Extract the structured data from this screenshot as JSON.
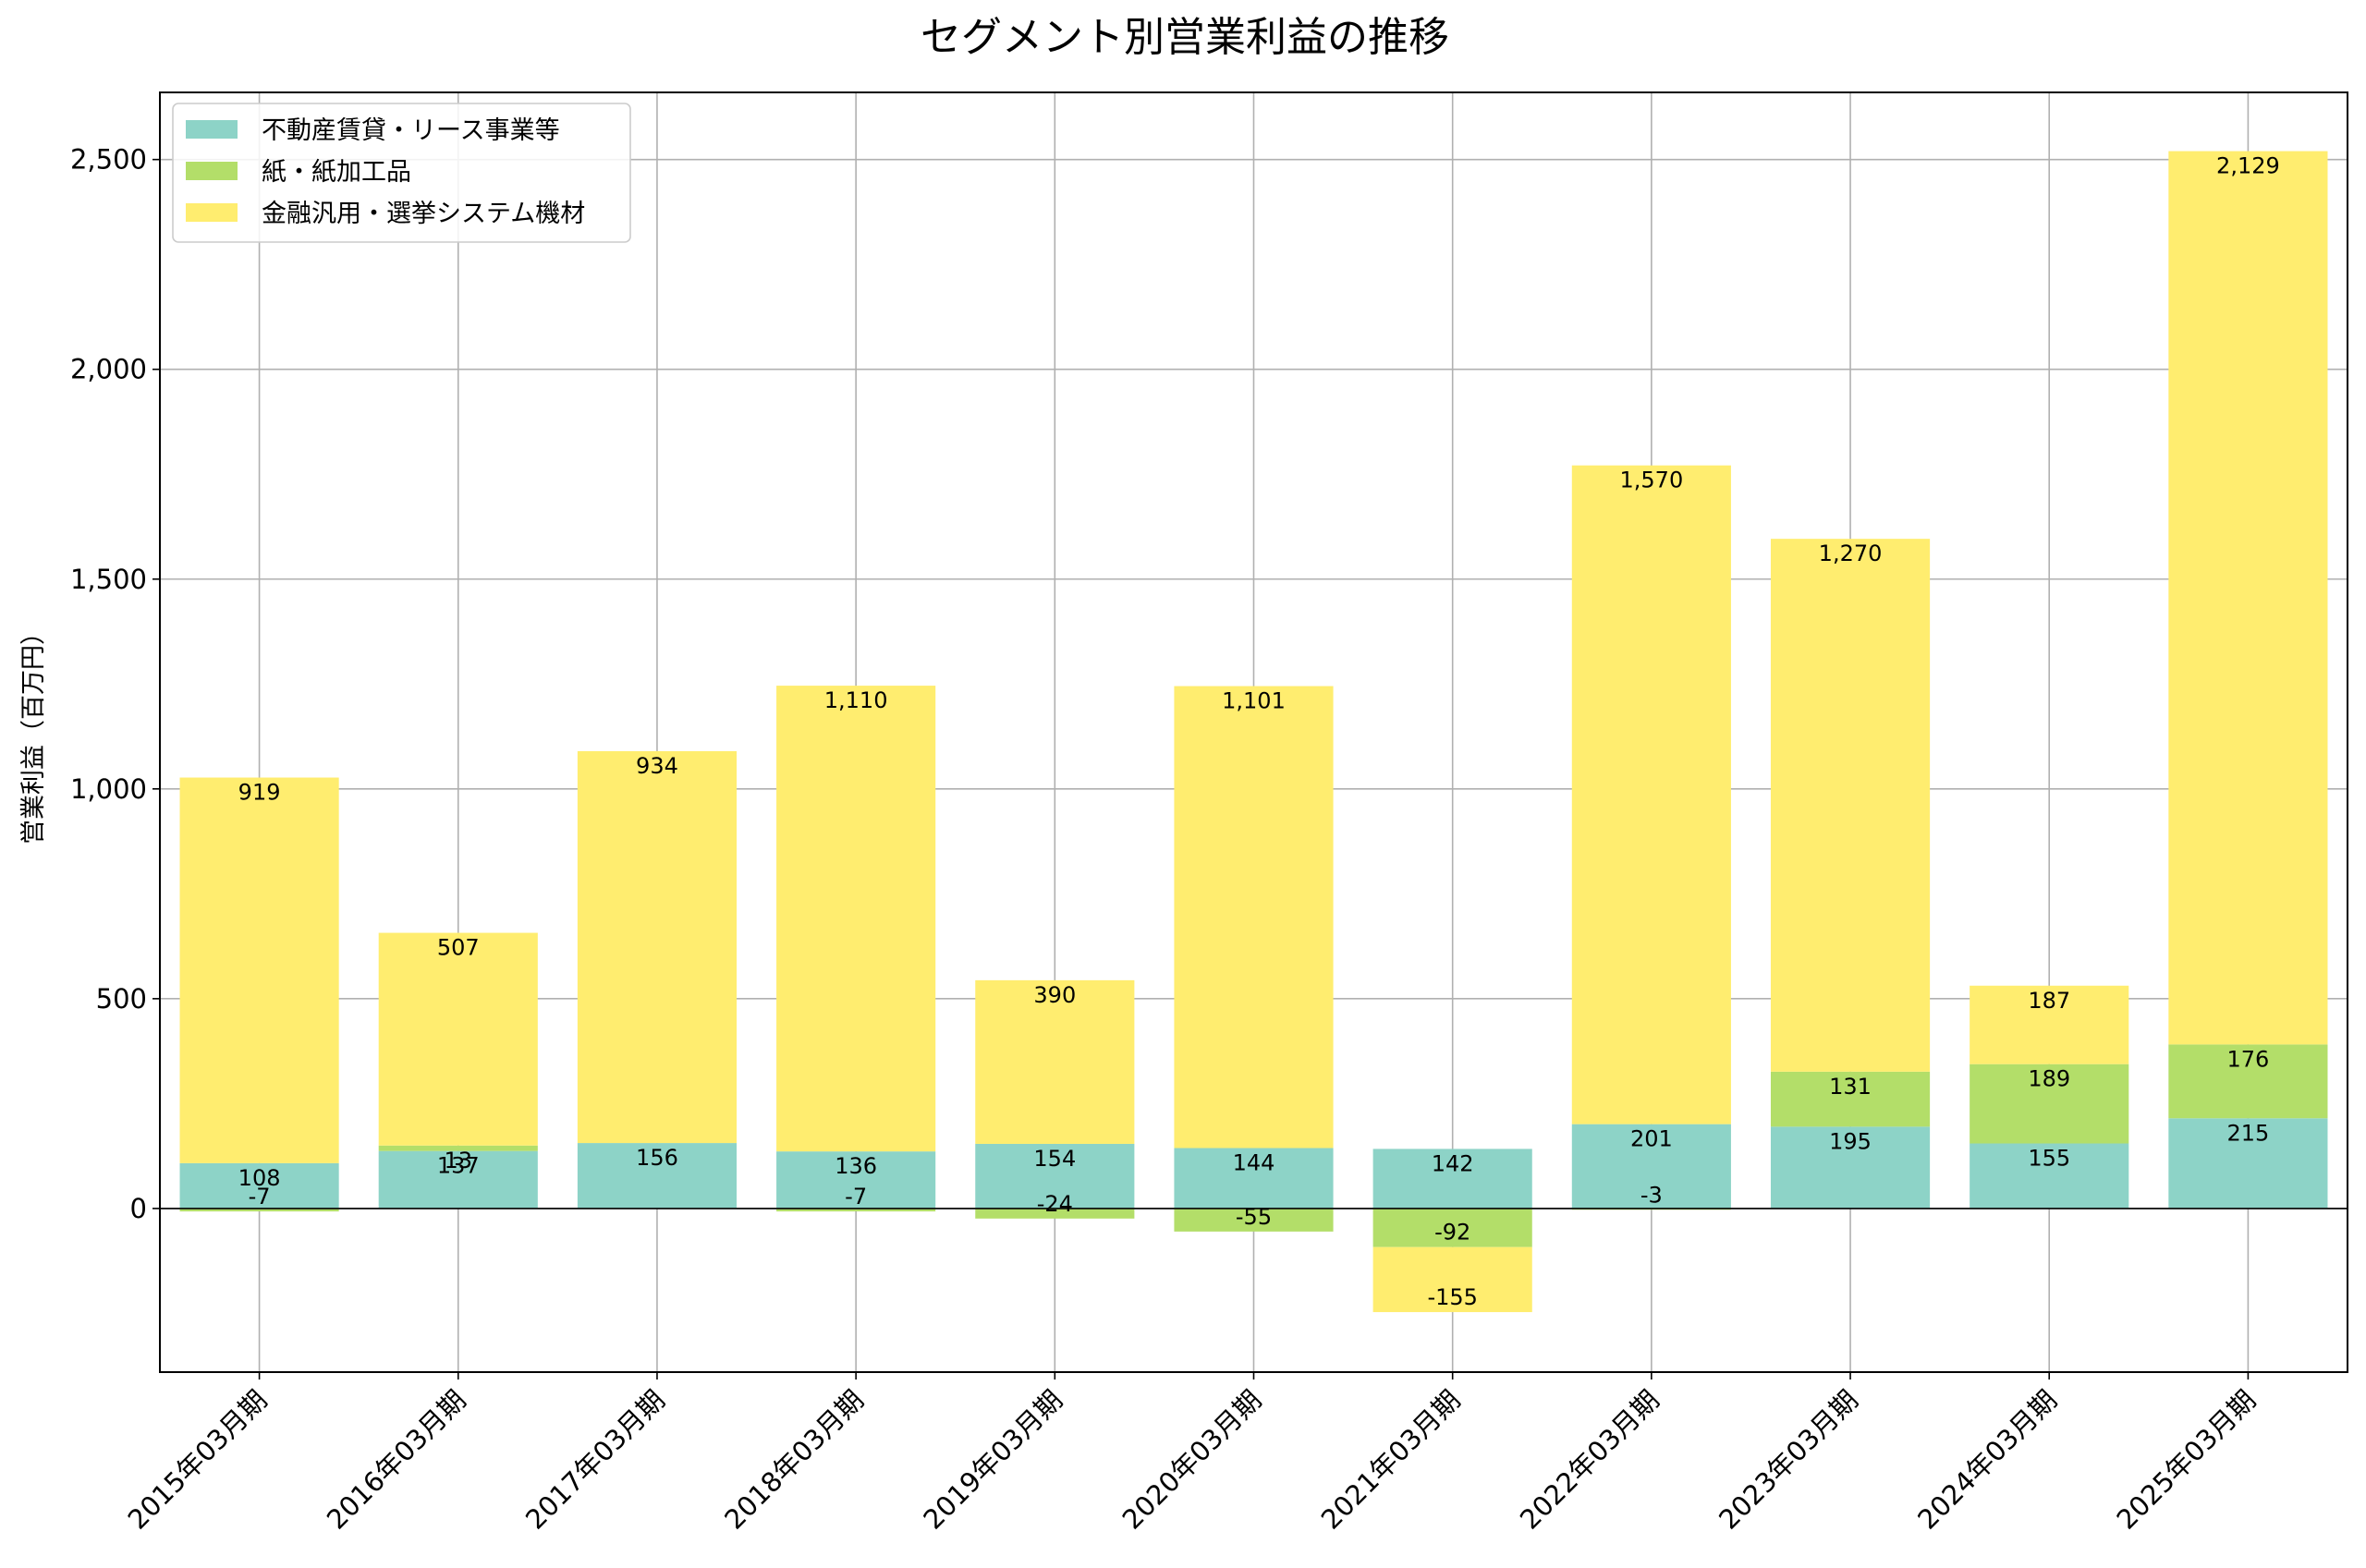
{
  "chart_data": {
    "type": "bar",
    "stacked": true,
    "title": "セグメント別営業利益の推移",
    "ylabel": "営業利益（百万円）",
    "xlabel": "",
    "ylim": [
      -390,
      2660
    ],
    "yticks": [
      0,
      500,
      1000,
      1500,
      2000,
      2500
    ],
    "ytick_labels": [
      "0",
      "500",
      "1,000",
      "1,500",
      "2,000",
      "2,500"
    ],
    "grid": true,
    "legend_position": "top-left",
    "categories": [
      "2015年03月期",
      "2016年03月期",
      "2017年03月期",
      "2018年03月期",
      "2019年03月期",
      "2020年03月期",
      "2021年03月期",
      "2022年03月期",
      "2023年03月期",
      "2024年03月期",
      "2025年03月期"
    ],
    "series": [
      {
        "name": "不動産賃貸・リース事業等",
        "color": "#8dd3c7",
        "values": [
          108,
          137,
          156,
          136,
          154,
          144,
          142,
          201,
          195,
          155,
          215
        ],
        "labels": [
          "108",
          "137",
          "156",
          "136",
          "154",
          "144",
          "142",
          "201",
          "195",
          "155",
          "215"
        ]
      },
      {
        "name": "紙・紙加工品",
        "color": "#b3de69",
        "values": [
          -7,
          13,
          0,
          -7,
          -24,
          -55,
          -92,
          -3,
          131,
          189,
          176
        ],
        "labels": [
          "-7",
          "13",
          "",
          "-7",
          "-24",
          "-55",
          "-92",
          "-3",
          "131",
          "189",
          "176"
        ]
      },
      {
        "name": "金融汎用・選挙システム機材",
        "color": "#ffed6f",
        "values": [
          919,
          507,
          934,
          1110,
          390,
          1101,
          -155,
          1570,
          1270,
          187,
          2129
        ],
        "labels": [
          "919",
          "507",
          "934",
          "1,110",
          "390",
          "1,101",
          "-155",
          "1,570",
          "1,270",
          "187",
          "2,129"
        ]
      }
    ]
  }
}
